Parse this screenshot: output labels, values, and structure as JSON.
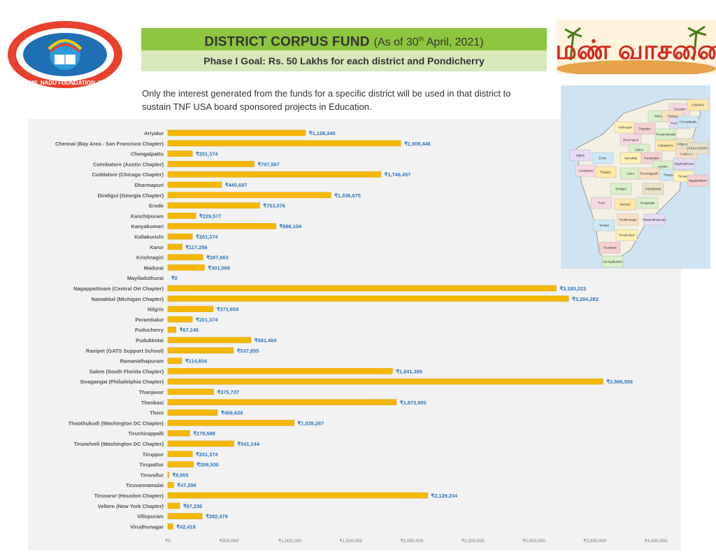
{
  "header": {
    "logo_text": "TAMIL NADU FOUNDATION, INC",
    "title": "DISTRICT CORPUS FUND",
    "subtitle_prefix": "(As of 30",
    "subtitle_sup": "th",
    "subtitle_suffix": " April, 2021)",
    "goal": "Phase I Goal: Rs. 50 Lakhs for each district and Pondicherry",
    "right_logo_text": "மண் வாசனை"
  },
  "note": {
    "line1": "Only the interest generated from the funds for a specific district will be used in that district to",
    "line2": "sustain TNF USA board sponsored projects in Education."
  },
  "colors": {
    "bar": "#f5b800",
    "bar_edge": "#d99b00",
    "label": "#2e75b6",
    "banner": "#8dc63f",
    "banner_light": "#d7e9b9"
  },
  "chart_data": {
    "type": "bar",
    "orientation": "horizontal",
    "currency": "₹",
    "xlim": [
      0,
      4000000
    ],
    "ticks": [
      0,
      500000,
      1000000,
      1500000,
      2000000,
      2500000,
      3000000,
      3500000,
      4000000
    ],
    "tick_labels": [
      "₹0",
      "₹500,000",
      "₹1,000,000",
      "₹1,500,000",
      "₹2,000,000",
      "₹2,500,000",
      "₹3,000,000",
      "₹3,500,000",
      "₹4,000,000"
    ],
    "categories": [
      "Ariyalur",
      "Chennai (Bay Area - San Francisco Chapter)",
      "Chengalpattu",
      "Coimbatore (Austin Chapter)",
      "Cuddalore (Chicago Chapter)",
      "Dharmapuri",
      "Dindigul (Georgia Chapter)",
      "Erode",
      "Kanchipuram",
      "Kanyakumari",
      "Kallakurichi",
      "Karur",
      "Krishnagiri",
      "Madurai",
      "Mayiladuthurai",
      "Nagappattinam (Central OH Chapter)",
      "Namakkal (Michigan Chapter)",
      "Nilgris",
      "Perambalur",
      "Puducherry",
      "Pudukkotai",
      "Ranipet (GATS Support School)",
      "Ramanathapuram",
      "Salem (South Florida Chapter)",
      "Sivagangai (Philadelphia Chapter)",
      "Thanjavur",
      "Thenkasi",
      "Theni",
      "Thoothukudi (Washington DC Chapter)",
      "Tiruchirappalli",
      "Tirunelveli (Washington DC Chapter)",
      "Tiruppur",
      "Tirupattur",
      "Tiruvallur",
      "Tiruvannamalai",
      "Tiruvarur (Houston Chapter)",
      "Vellore  (New York Chapter)",
      "Villupuram",
      "Virudhunagar"
    ],
    "values": [
      1128340,
      1909446,
      201374,
      707567,
      1746457,
      440697,
      1336675,
      753076,
      229577,
      886104,
      201374,
      117256,
      287863,
      301066,
      0,
      3183223,
      3284282,
      371654,
      201374,
      67146,
      681404,
      537855,
      114604,
      1841395,
      3566556,
      375737,
      1873900,
      406629,
      1035267,
      179588,
      541144,
      201374,
      208530,
      8855,
      47298,
      2129234,
      97236,
      282479,
      42418
    ],
    "value_labels": [
      "₹1,128,340",
      "₹1,909,446",
      "₹201,374",
      "₹707,567",
      "₹1,746,457",
      "₹440,697",
      "₹1,336,675",
      "₹753,076",
      "₹229,577",
      "₹886,104",
      "₹201,374",
      "₹117,256",
      "₹287,863",
      "₹301,066",
      "₹0",
      "₹3,183,223",
      "₹3,284,282",
      "₹371,654",
      "₹201,374",
      "₹67,146",
      "₹681,404",
      "₹537,855",
      "₹114,604",
      "₹1,841,395",
      "₹3,566,556",
      "₹375,737",
      "₹1,873,900",
      "₹406,629",
      "₹1,035,267",
      "₹179,588",
      "₹541,144",
      "₹201,374",
      "₹208,530",
      "₹8,855",
      "₹47,298",
      "₹2,129,234",
      "₹97,236",
      "₹282,479",
      "₹42,418"
    ]
  },
  "map": {
    "districts": [
      "Tiruvallur",
      "CHENNAI",
      "Vellore",
      "Ranipet",
      "Kanchipuram",
      "Chengalpattu",
      "Krishnagiri",
      "Tirupattur",
      "Tiruvannamalai",
      "Villupuram",
      "Dharmapuri",
      "Kallakurichi",
      "Salem",
      "Cuddalore",
      "Nilgris",
      "Erode",
      "Namakkal",
      "Perambalur",
      "Ariyalur",
      "PUDUCHERRY",
      "Coimbatore",
      "Tiruppur",
      "Karur",
      "Tiruchirappalli",
      "Mayiladuthurai",
      "Thanjavur",
      "Tiruvarur",
      "Nagapattinam",
      "Dindigul",
      "Pudukkottai",
      "Theni",
      "Madurai",
      "Sivagangai",
      "Virudhunagar",
      "Ramanathapuram",
      "Tenkasi",
      "Thoothukudi",
      "Tirunelveli",
      "Kanniyakumari"
    ]
  }
}
